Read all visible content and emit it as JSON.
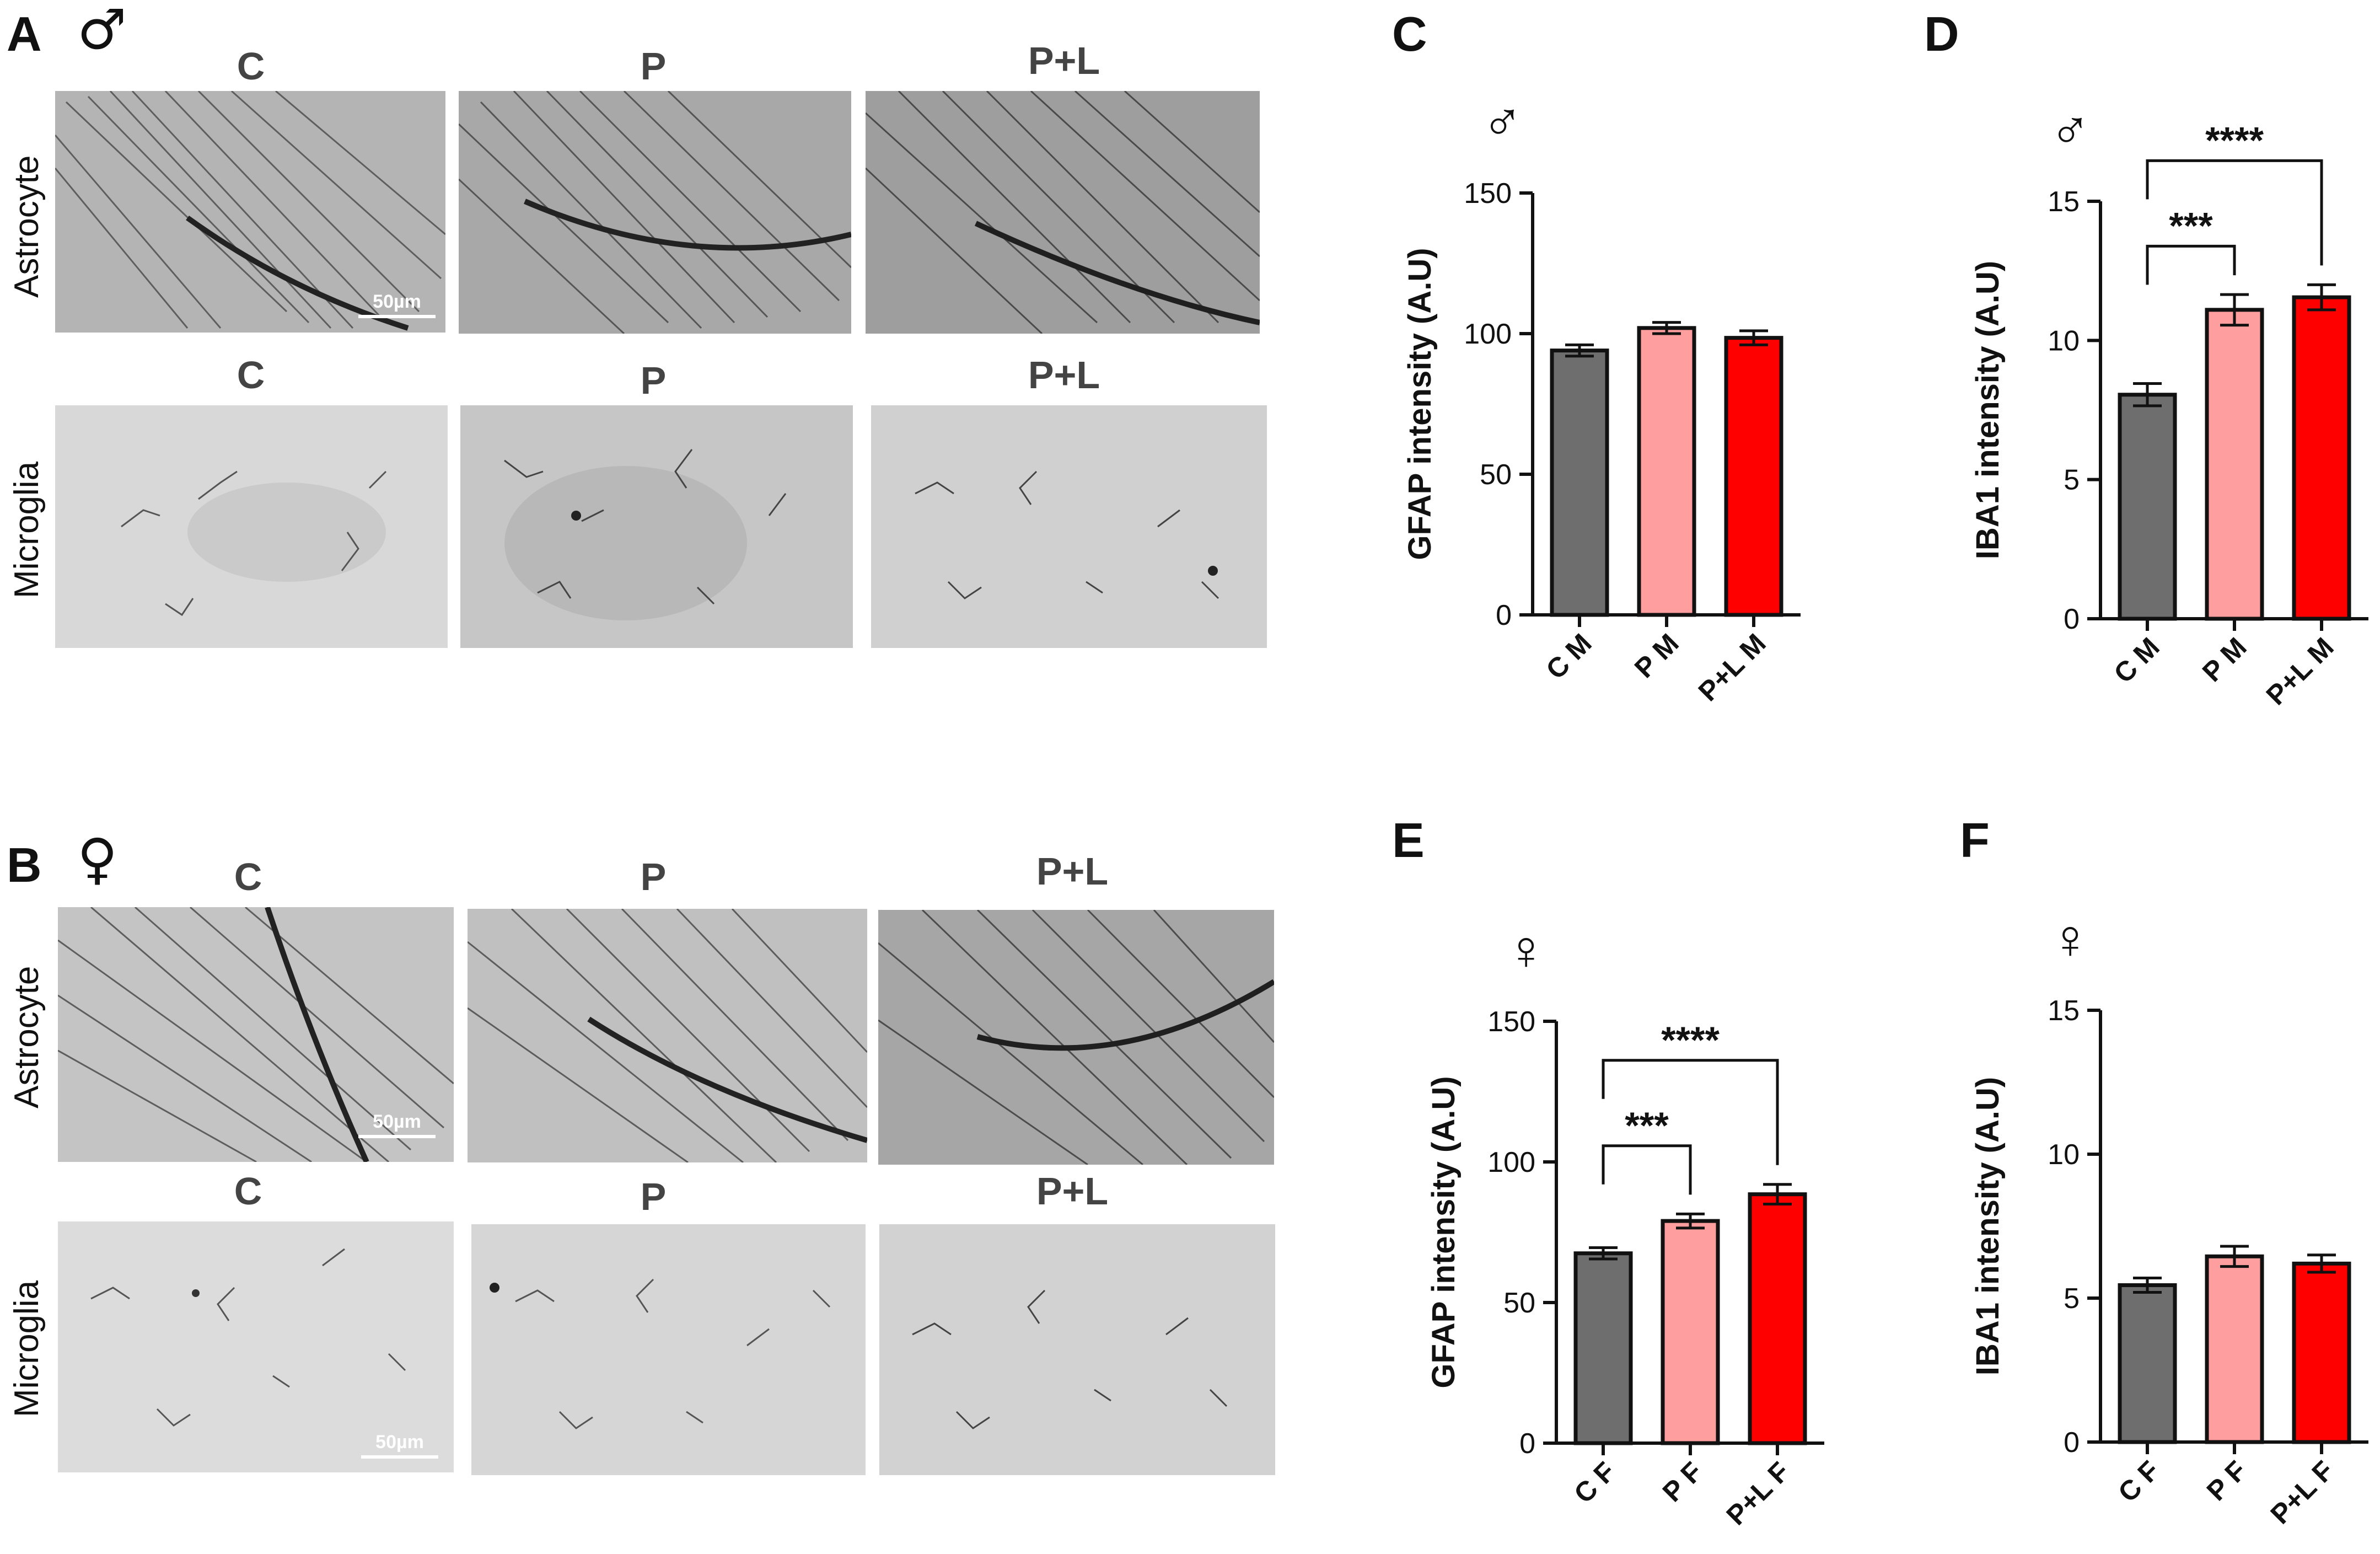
{
  "panels": {
    "A": {
      "label": "A",
      "sex": "♂",
      "row_labels": [
        "Astrocyte",
        "Microglia"
      ],
      "col_titles": [
        "C",
        "P",
        "P+L"
      ],
      "scale_bar": "50µm"
    },
    "B": {
      "label": "B",
      "sex": "♀",
      "row_labels": [
        "Astrocyte",
        "Microglia"
      ],
      "col_titles": [
        "C",
        "P",
        "P+L"
      ],
      "scale_bar": "50µm"
    }
  },
  "colors": {
    "C": "#6e6e6e",
    "P": "#ff9e9e",
    "PL": "#ff0000",
    "outline": "#111111"
  },
  "chart_data": [
    {
      "panel": "C",
      "sex": "♂",
      "type": "bar",
      "categories": [
        "C M",
        "P M",
        "P+L M"
      ],
      "values": [
        94,
        102,
        98.5
      ],
      "errors": [
        2,
        2,
        2.5
      ],
      "ylabel": "GFAP intensity (A.U)",
      "ylim": [
        0,
        150
      ],
      "yticks": [
        0,
        50,
        100,
        150
      ],
      "significance": []
    },
    {
      "panel": "D",
      "sex": "♂",
      "type": "bar",
      "categories": [
        "C M",
        "P M",
        "P+L M"
      ],
      "values": [
        8.05,
        11.1,
        11.55
      ],
      "errors": [
        0.4,
        0.55,
        0.45
      ],
      "ylabel": "IBA1 intensity (A.U)",
      "ylim": [
        0,
        15
      ],
      "yticks": [
        0,
        5,
        10,
        15
      ],
      "significance": [
        {
          "from": 0,
          "to": 1,
          "label": "***"
        },
        {
          "from": 0,
          "to": 2,
          "label": "****"
        }
      ]
    },
    {
      "panel": "E",
      "sex": "♀",
      "type": "bar",
      "categories": [
        "C F",
        "P F",
        "P+L F"
      ],
      "values": [
        67.5,
        79,
        88.5
      ],
      "errors": [
        2,
        2.5,
        3.5
      ],
      "ylabel": "GFAP intensity (A.U)",
      "ylim": [
        0,
        150
      ],
      "yticks": [
        0,
        50,
        100,
        150
      ],
      "significance": [
        {
          "from": 0,
          "to": 1,
          "label": "***"
        },
        {
          "from": 0,
          "to": 2,
          "label": "****"
        }
      ]
    },
    {
      "panel": "F",
      "sex": "♀",
      "type": "bar",
      "categories": [
        "C F",
        "P F",
        "P+L F"
      ],
      "values": [
        5.45,
        6.45,
        6.2
      ],
      "errors": [
        0.25,
        0.35,
        0.3
      ],
      "ylabel": "IBA1 intensity (A.U)",
      "ylim": [
        0,
        15
      ],
      "yticks": [
        0,
        5,
        10,
        15
      ],
      "significance": []
    }
  ]
}
